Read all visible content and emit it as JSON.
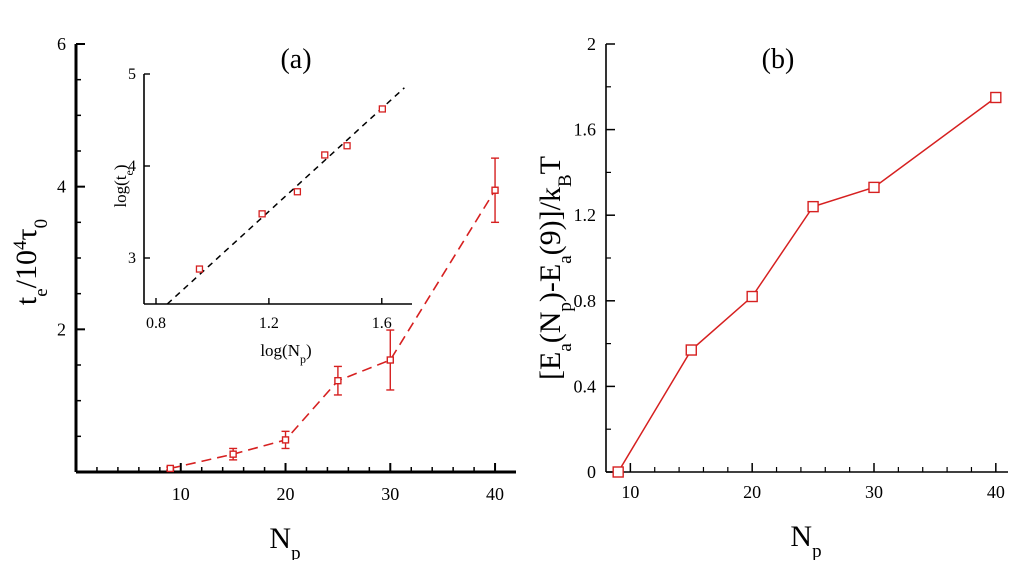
{
  "colors": {
    "series": "#d62020",
    "axis": "#000000",
    "fit": "#000000"
  },
  "chart_data": [
    {
      "id": "a",
      "type": "scatter",
      "panel_label": "(a)",
      "xlabel": {
        "main": "N",
        "sub": "p"
      },
      "ylabel": {
        "t": "t",
        "e": "e",
        "slash": "/10",
        "four": "4",
        "tau": "τ",
        "zero": "0"
      },
      "xlim": [
        0,
        42
      ],
      "ylim": [
        0,
        6
      ],
      "xticks": [
        10,
        20,
        30,
        40
      ],
      "yticks": [
        2,
        4,
        6
      ],
      "x": [
        9,
        15,
        20,
        25,
        30,
        40
      ],
      "y": [
        0.05,
        0.25,
        0.45,
        1.28,
        1.57,
        3.95
      ],
      "yerr": [
        0.02,
        0.08,
        0.12,
        0.2,
        0.42,
        0.45
      ],
      "line_style": "dashed"
    },
    {
      "id": "a-inset",
      "type": "scatter",
      "xlabel": {
        "main": "log(N",
        "sub": "p",
        "close": ")"
      },
      "ylabel": {
        "main": "log(t",
        "sub": "e",
        "close": ")"
      },
      "xlim": [
        0.8,
        1.7
      ],
      "ylim": [
        2.5,
        5.0
      ],
      "xticks": [
        "0.8",
        "1.2",
        "1.6"
      ],
      "yticks": [
        "3",
        "4",
        "5"
      ],
      "x": [
        0.954,
        1.176,
        1.301,
        1.398,
        1.477,
        1.602
      ],
      "y": [
        2.88,
        3.48,
        3.72,
        4.12,
        4.22,
        4.62
      ],
      "fit_line": {
        "x": [
          0.84,
          1.68
        ],
        "y": [
          2.5,
          4.85
        ],
        "style": "dashed"
      }
    },
    {
      "id": "b",
      "type": "line",
      "panel_label": "(b)",
      "xlabel": {
        "main": "N",
        "sub": "p"
      },
      "ylabel": {
        "a": "[E",
        "b": "a",
        "c": "(N",
        "d": "p",
        "e": ")-E",
        "f": "a",
        "g": "(9)]/k",
        "h": "B",
        "i": "T"
      },
      "xlim": [
        8,
        41
      ],
      "ylim": [
        0,
        2
      ],
      "xticks": [
        10,
        20,
        30,
        40
      ],
      "yticks": [
        "0",
        "0.4",
        "0.8",
        "1.2",
        "1.6",
        "2"
      ],
      "x": [
        9,
        15,
        20,
        25,
        30,
        40
      ],
      "y": [
        0.0,
        0.57,
        0.82,
        1.24,
        1.33,
        1.75
      ]
    }
  ]
}
